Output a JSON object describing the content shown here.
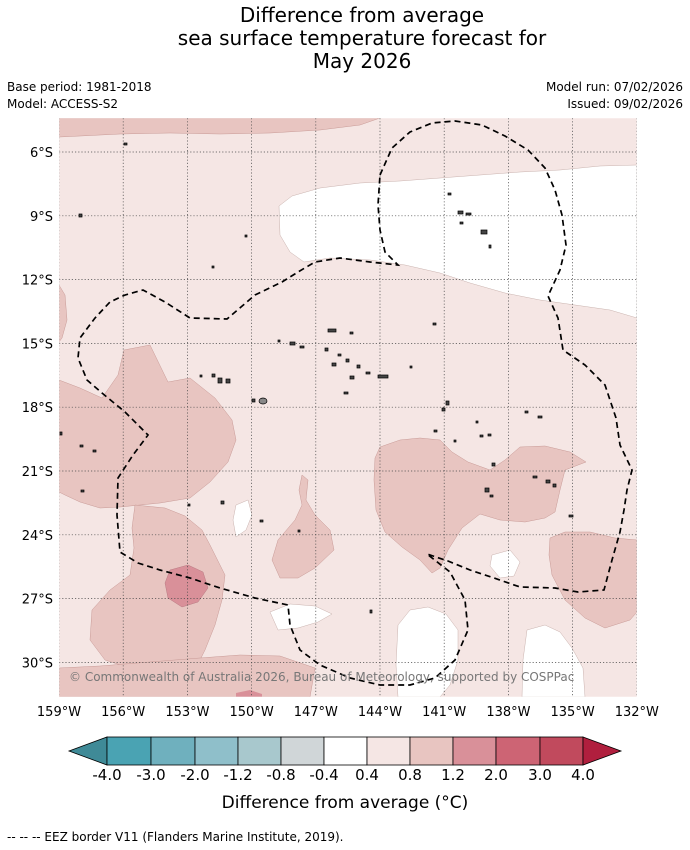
{
  "header": {
    "title_line1": "Difference from average",
    "title_line2": "sea surface temperature forecast for",
    "title_line3": "May 2026",
    "base_period": "Base period: 1981-2018",
    "model": "Model: ACCESS-S2",
    "model_run": "Model run: 07/02/2026",
    "issued": "Issued: 09/02/2026"
  },
  "map": {
    "copyright": "© Commonwealth of Australia 2026, Bureau of Meteorology, supported by COSPPac",
    "lon_labels": [
      "159°W",
      "156°W",
      "153°W",
      "150°W",
      "147°W",
      "144°W",
      "141°W",
      "138°W",
      "135°W",
      "132°W"
    ],
    "lat_labels": [
      "6°S",
      "9°S",
      "12°S",
      "15°S",
      "18°S",
      "21°S",
      "24°S",
      "27°S",
      "30°S"
    ]
  },
  "colorbar": {
    "ticks": [
      "-4.0",
      "-3.0",
      "-2.0",
      "-1.2",
      "-0.8",
      "-0.4",
      "0.4",
      "0.8",
      "1.2",
      "2.0",
      "3.0",
      "4.0"
    ],
    "colors": [
      "#3f8a97",
      "#4aa3b3",
      "#6fb0be",
      "#8fbfca",
      "#a8c8cd",
      "#d0d6d8",
      "#ffffff",
      "#f5e6e4",
      "#e8c5c1",
      "#d99099",
      "#cd6474",
      "#c14a5d",
      "#b01f3e"
    ],
    "label": "Difference from average (°C)"
  },
  "footer": {
    "text": "--  --  -- EEZ border V11 (Flanders Marine Institute, 2019)."
  }
}
